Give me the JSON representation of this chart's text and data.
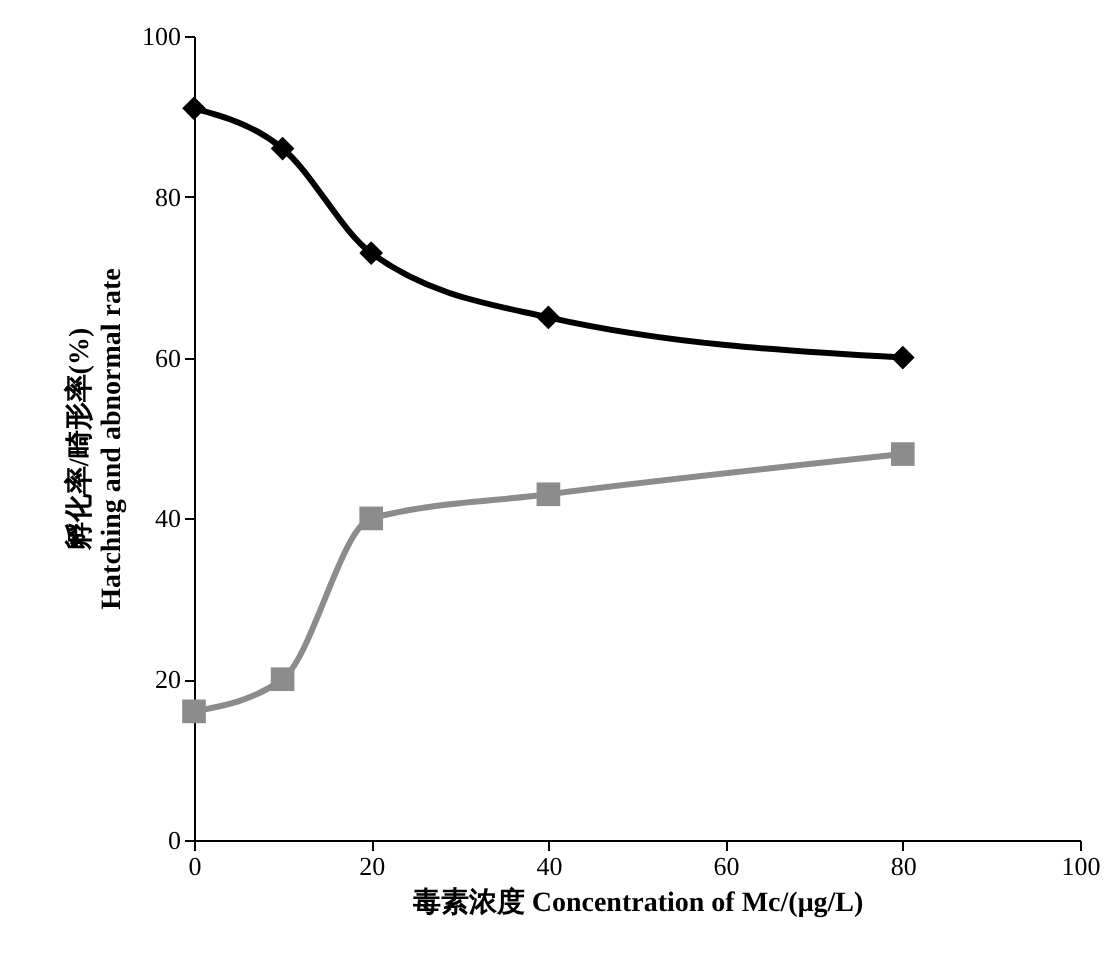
{
  "chart_data": {
    "type": "line",
    "xlabel": "毒素浓度 Concentration of Mc/(μg/L)",
    "ylabel": "孵化率/畸形率(%)\nHatching and abnormal rate",
    "x": [
      0,
      10,
      20,
      40,
      80
    ],
    "series": [
      {
        "color": "#000000",
        "marker": "diamond",
        "values": [
          91,
          86,
          73,
          65,
          60
        ]
      },
      {
        "color": "#8c8c8c",
        "marker": "square",
        "values": [
          16,
          20,
          40,
          43,
          48
        ]
      }
    ],
    "xlim": [
      0,
      100
    ],
    "xticks": [
      0,
      20,
      40,
      60,
      80,
      100
    ],
    "ylim": [
      0,
      100
    ],
    "yticks": [
      0,
      20,
      40,
      60,
      80,
      100
    ],
    "grid": false
  }
}
